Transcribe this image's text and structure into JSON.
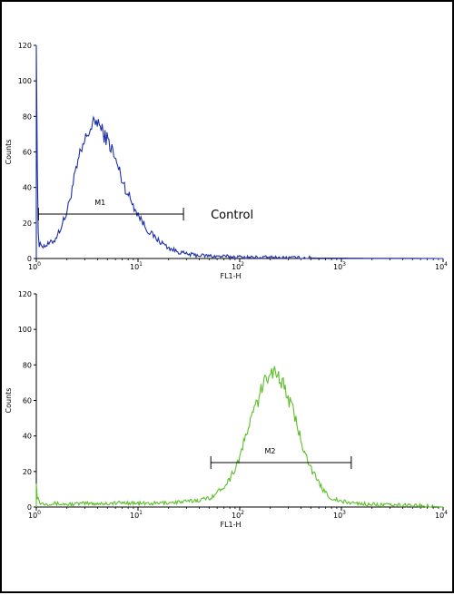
{
  "chart_data": [
    {
      "type": "line",
      "title": "",
      "xlabel": "FL1-H",
      "ylabel": "Counts",
      "xscale": "log",
      "xlim": [
        1,
        10000
      ],
      "ylim": [
        0,
        120
      ],
      "x_ticks": [
        {
          "base": "10",
          "exp": "0"
        },
        {
          "base": "10",
          "exp": "1"
        },
        {
          "base": "10",
          "exp": "2"
        },
        {
          "base": "10",
          "exp": "3"
        },
        {
          "base": "10",
          "exp": "4"
        }
      ],
      "y_ticks": [
        "0",
        "20",
        "40",
        "60",
        "80",
        "100",
        "120"
      ],
      "series": [
        {
          "color": "#1f2fa8",
          "x": [
            1.0,
            1.02,
            1.05,
            1.1,
            1.2,
            1.3,
            1.5,
            1.7,
            2.0,
            2.3,
            2.6,
            3.0,
            3.3,
            3.6,
            4.0,
            4.3,
            4.6,
            5.0,
            5.5,
            6.0,
            6.5,
            7.0,
            8.0,
            9.0,
            10.0,
            11.0,
            12.0,
            14.0,
            16.0,
            18.0,
            20.0,
            23.0,
            26.0,
            30.0,
            35.0,
            40.0,
            50.0,
            60.0,
            80.0,
            100.0,
            200.0,
            500.0,
            1000.0,
            2000.0,
            5000.0,
            10000.0
          ],
          "y": [
            120,
            60,
            6,
            8,
            7,
            8,
            10,
            16,
            26,
            42,
            55,
            66,
            72,
            75,
            78,
            73,
            70,
            67,
            62,
            55,
            50,
            44,
            36,
            30,
            25,
            21,
            17,
            13,
            10,
            8,
            6,
            4.5,
            3.5,
            2.5,
            2,
            1.8,
            1.5,
            1.2,
            1,
            0.8,
            0.5,
            0.3,
            0.2,
            0.1,
            0.1,
            0
          ]
        }
      ],
      "markers": [
        {
          "label": "M1",
          "x_start": 1.05,
          "x_end": 28,
          "y": 25
        }
      ],
      "annotations": [
        "Control"
      ],
      "grid": false,
      "legend": "none"
    },
    {
      "type": "line",
      "title": "",
      "xlabel": "FL1-H",
      "ylabel": "Counts",
      "xscale": "log",
      "xlim": [
        1,
        10000
      ],
      "ylim": [
        0,
        120
      ],
      "x_ticks": [
        {
          "base": "10",
          "exp": "0"
        },
        {
          "base": "10",
          "exp": "1"
        },
        {
          "base": "10",
          "exp": "2"
        },
        {
          "base": "10",
          "exp": "3"
        },
        {
          "base": "10",
          "exp": "4"
        }
      ],
      "y_ticks": [
        "0",
        "20",
        "40",
        "60",
        "80",
        "100",
        "120"
      ],
      "series": [
        {
          "color": "#5cbf2a",
          "x": [
            1.0,
            1.02,
            1.1,
            1.5,
            2.0,
            3.0,
            5.0,
            8.0,
            10.0,
            15.0,
            20.0,
            30.0,
            40.0,
            50.0,
            60.0,
            70.0,
            80.0,
            90.0,
            100.0,
            110.0,
            120.0,
            140.0,
            160.0,
            180.0,
            200.0,
            230.0,
            260.0,
            300.0,
            350.0,
            400.0,
            450.0,
            500.0,
            600.0,
            700.0,
            800.0,
            1000.0,
            1200.0,
            1500.0,
            2000.0,
            3000.0,
            5000.0,
            10000.0
          ],
          "y": [
            15,
            6,
            2,
            2,
            1.5,
            2,
            2,
            2.5,
            2,
            2,
            2.5,
            3,
            4,
            5,
            8,
            12,
            16,
            22,
            28,
            36,
            44,
            55,
            64,
            72,
            77,
            76,
            70,
            62,
            50,
            38,
            30,
            22,
            13,
            8,
            5,
            3,
            2.5,
            2,
            1.5,
            1,
            1,
            0
          ]
        }
      ],
      "markers": [
        {
          "label": "M2",
          "x_start": 52,
          "x_end": 1250,
          "y": 25
        }
      ],
      "annotations": [],
      "grid": false,
      "legend": "none"
    }
  ]
}
